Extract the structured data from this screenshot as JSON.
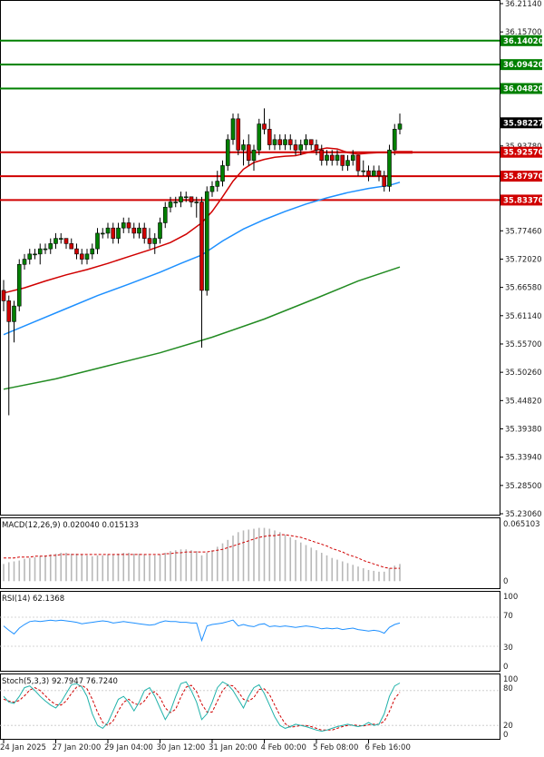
{
  "chart_data": {
    "type": "candlestick",
    "main_panel": {
      "price_axis_labels": [
        "36.21140",
        "36.15700",
        "36.09420",
        "36.04820",
        "35.98220",
        "35.93780",
        "35.88340",
        "35.82900",
        "35.77460",
        "35.72020",
        "35.66580",
        "35.61140",
        "35.55700",
        "35.50260",
        "35.44820",
        "35.39380",
        "35.33940",
        "35.28500",
        "35.23060"
      ],
      "ylim": [
        35.2306,
        36.2114
      ],
      "horizontal_lines": [
        {
          "value": 36.1402,
          "label": "36.14020",
          "color": "#008000"
        },
        {
          "value": 36.0942,
          "label": "36.09420",
          "color": "#008000"
        },
        {
          "value": 36.0482,
          "label": "36.04820",
          "color": "#008000"
        },
        {
          "value": 35.9257,
          "label": "35.92570",
          "color": "#d00000"
        },
        {
          "value": 35.8797,
          "label": "35.87970",
          "color": "#d00000"
        },
        {
          "value": 35.8337,
          "label": "35.83370",
          "color": "#d00000"
        }
      ],
      "current_price": {
        "value": 35.98227,
        "label": "35.98227",
        "color": "#000000"
      },
      "ma_price_tag": {
        "value": 35.9257,
        "color": "#d00000"
      },
      "time_labels": [
        "24 Jan 2025",
        "27 Jan 20:00",
        "29 Jan 04:00",
        "30 Jan 12:00",
        "31 Jan 20:00",
        "4 Feb 00:00",
        "5 Feb 08:00",
        "6 Feb 16:00"
      ],
      "time_label_index": [
        0,
        10,
        20,
        30,
        40,
        50,
        60,
        70
      ],
      "candles": [
        [
          35.66,
          35.68,
          35.62,
          35.64
        ],
        [
          35.64,
          35.65,
          35.42,
          35.6
        ],
        [
          35.6,
          35.64,
          35.56,
          35.63
        ],
        [
          35.63,
          35.72,
          35.62,
          35.71
        ],
        [
          35.71,
          35.73,
          35.7,
          35.72
        ],
        [
          35.72,
          35.74,
          35.71,
          35.73
        ],
        [
          35.73,
          35.74,
          35.72,
          35.73
        ],
        [
          35.73,
          35.75,
          35.71,
          35.74
        ],
        [
          35.74,
          35.75,
          35.73,
          35.74
        ],
        [
          35.74,
          35.76,
          35.73,
          35.75
        ],
        [
          35.75,
          35.77,
          35.74,
          35.76
        ],
        [
          35.76,
          35.77,
          35.75,
          35.76
        ],
        [
          35.76,
          35.76,
          35.74,
          35.75
        ],
        [
          35.75,
          35.76,
          35.74,
          35.74
        ],
        [
          35.74,
          35.75,
          35.72,
          35.73
        ],
        [
          35.73,
          35.74,
          35.71,
          35.72
        ],
        [
          35.72,
          35.74,
          35.71,
          35.73
        ],
        [
          35.73,
          35.75,
          35.72,
          35.74
        ],
        [
          35.74,
          35.78,
          35.73,
          35.77
        ],
        [
          35.77,
          35.78,
          35.76,
          35.77
        ],
        [
          35.77,
          35.79,
          35.76,
          35.78
        ],
        [
          35.78,
          35.79,
          35.75,
          35.76
        ],
        [
          35.76,
          35.79,
          35.75,
          35.78
        ],
        [
          35.78,
          35.8,
          35.77,
          35.79
        ],
        [
          35.79,
          35.8,
          35.77,
          35.78
        ],
        [
          35.78,
          35.79,
          35.76,
          35.77
        ],
        [
          35.77,
          35.79,
          35.76,
          35.78
        ],
        [
          35.78,
          35.79,
          35.75,
          35.76
        ],
        [
          35.76,
          35.78,
          35.74,
          35.75
        ],
        [
          35.75,
          35.77,
          35.73,
          35.76
        ],
        [
          35.76,
          35.8,
          35.75,
          35.79
        ],
        [
          35.79,
          35.83,
          35.78,
          35.82
        ],
        [
          35.82,
          35.84,
          35.81,
          35.83
        ],
        [
          35.83,
          35.84,
          35.82,
          35.83
        ],
        [
          35.83,
          35.85,
          35.82,
          35.84
        ],
        [
          35.84,
          35.85,
          35.83,
          35.84
        ],
        [
          35.84,
          35.84,
          35.82,
          35.83
        ],
        [
          35.83,
          35.84,
          35.8,
          35.83
        ],
        [
          35.83,
          35.84,
          35.55,
          35.66
        ],
        [
          35.66,
          35.86,
          35.65,
          35.85
        ],
        [
          35.85,
          35.87,
          35.84,
          35.86
        ],
        [
          35.86,
          35.89,
          35.85,
          35.87
        ],
        [
          35.87,
          35.91,
          35.86,
          35.9
        ],
        [
          35.9,
          35.96,
          35.89,
          35.95
        ],
        [
          35.95,
          36.0,
          35.94,
          35.99
        ],
        [
          35.99,
          36.0,
          35.92,
          35.93
        ],
        [
          35.93,
          35.95,
          35.9,
          35.94
        ],
        [
          35.94,
          35.96,
          35.9,
          35.91
        ],
        [
          35.91,
          35.94,
          35.89,
          35.93
        ],
        [
          35.93,
          35.99,
          35.92,
          35.98
        ],
        [
          35.98,
          36.01,
          35.96,
          35.97
        ],
        [
          35.97,
          35.99,
          35.93,
          35.94
        ],
        [
          35.94,
          35.96,
          35.93,
          35.95
        ],
        [
          35.95,
          35.96,
          35.93,
          35.94
        ],
        [
          35.94,
          35.96,
          35.93,
          35.95
        ],
        [
          35.95,
          35.96,
          35.93,
          35.94
        ],
        [
          35.94,
          35.95,
          35.92,
          35.93
        ],
        [
          35.93,
          35.95,
          35.92,
          35.94
        ],
        [
          35.94,
          35.96,
          35.93,
          35.95
        ],
        [
          35.95,
          35.95,
          35.93,
          35.94
        ],
        [
          35.94,
          35.95,
          35.92,
          35.93
        ],
        [
          35.93,
          35.94,
          35.9,
          35.91
        ],
        [
          35.91,
          35.93,
          35.9,
          35.92
        ],
        [
          35.92,
          35.93,
          35.9,
          35.91
        ],
        [
          35.91,
          35.93,
          35.9,
          35.92
        ],
        [
          35.92,
          35.92,
          35.89,
          35.9
        ],
        [
          35.9,
          35.92,
          35.89,
          35.91
        ],
        [
          35.91,
          35.93,
          35.9,
          35.92
        ],
        [
          35.92,
          35.92,
          35.88,
          35.89
        ],
        [
          35.89,
          35.91,
          35.88,
          35.89
        ],
        [
          35.89,
          35.9,
          35.87,
          35.88
        ],
        [
          35.88,
          35.9,
          35.88,
          35.89
        ],
        [
          35.89,
          35.9,
          35.87,
          35.88
        ],
        [
          35.88,
          35.89,
          35.85,
          35.86
        ],
        [
          35.86,
          35.94,
          35.85,
          35.93
        ],
        [
          35.93,
          35.98,
          35.92,
          35.97
        ],
        [
          35.97,
          36.0,
          35.96,
          35.98
        ]
      ],
      "moving_averages": [
        {
          "color": "#d00000",
          "width": 1.5,
          "points": [
            [
              0,
              35.655
            ],
            [
              4,
              35.665
            ],
            [
              8,
              35.678
            ],
            [
              12,
              35.69
            ],
            [
              16,
              35.7
            ],
            [
              20,
              35.712
            ],
            [
              24,
              35.725
            ],
            [
              28,
              35.738
            ],
            [
              32,
              35.752
            ],
            [
              35,
              35.768
            ],
            [
              38,
              35.79
            ],
            [
              40,
              35.812
            ],
            [
              42,
              35.84
            ],
            [
              44,
              35.87
            ],
            [
              46,
              35.893
            ],
            [
              48,
              35.906
            ],
            [
              50,
              35.912
            ],
            [
              52,
              35.916
            ],
            [
              54,
              35.918
            ],
            [
              56,
              35.919
            ],
            [
              58,
              35.924
            ],
            [
              60,
              35.93
            ],
            [
              62,
              35.934
            ],
            [
              64,
              35.932
            ],
            [
              66,
              35.925
            ],
            [
              68,
              35.922
            ],
            [
              70,
              35.924
            ],
            [
              72,
              35.925
            ],
            [
              74,
              35.925
            ],
            [
              76,
              35.925
            ]
          ]
        },
        {
          "color": "#1e90ff",
          "width": 1.5,
          "points": [
            [
              0,
              35.575
            ],
            [
              6,
              35.6
            ],
            [
              12,
              35.625
            ],
            [
              18,
              35.65
            ],
            [
              24,
              35.672
            ],
            [
              30,
              35.695
            ],
            [
              34,
              35.712
            ],
            [
              38,
              35.728
            ],
            [
              42,
              35.755
            ],
            [
              46,
              35.778
            ],
            [
              50,
              35.796
            ],
            [
              54,
              35.812
            ],
            [
              58,
              35.826
            ],
            [
              62,
              35.838
            ],
            [
              66,
              35.848
            ],
            [
              70,
              35.856
            ],
            [
              74,
              35.862
            ],
            [
              76,
              35.868
            ]
          ]
        },
        {
          "color": "#228b22",
          "width": 1.5,
          "points": [
            [
              0,
              35.47
            ],
            [
              10,
              35.49
            ],
            [
              20,
              35.515
            ],
            [
              30,
              35.54
            ],
            [
              40,
              35.57
            ],
            [
              50,
              35.605
            ],
            [
              60,
              35.645
            ],
            [
              68,
              35.678
            ],
            [
              76,
              35.705
            ]
          ]
        }
      ]
    },
    "macd_panel": {
      "label": "MACD(12,26,9) 0.020040 0.015133",
      "axis_labels": [
        "0.065103",
        "0"
      ],
      "ylim": [
        -0.005,
        0.07
      ],
      "histogram": [
        0.02,
        0.022,
        0.023,
        0.024,
        0.026,
        0.027,
        0.028,
        0.029,
        0.03,
        0.031,
        0.032,
        0.033,
        0.033,
        0.032,
        0.032,
        0.031,
        0.03,
        0.029,
        0.03,
        0.03,
        0.031,
        0.031,
        0.032,
        0.033,
        0.033,
        0.032,
        0.032,
        0.031,
        0.03,
        0.03,
        0.031,
        0.033,
        0.035,
        0.036,
        0.037,
        0.037,
        0.036,
        0.035,
        0.03,
        0.033,
        0.036,
        0.04,
        0.044,
        0.048,
        0.053,
        0.057,
        0.059,
        0.06,
        0.061,
        0.062,
        0.062,
        0.061,
        0.059,
        0.057,
        0.054,
        0.051,
        0.048,
        0.045,
        0.042,
        0.039,
        0.036,
        0.033,
        0.03,
        0.027,
        0.025,
        0.023,
        0.021,
        0.019,
        0.017,
        0.015,
        0.013,
        0.012,
        0.011,
        0.011,
        0.015,
        0.018,
        0.02
      ],
      "signal": [
        0.027,
        0.027,
        0.027,
        0.028,
        0.028,
        0.028,
        0.029,
        0.029,
        0.029,
        0.03,
        0.03,
        0.031,
        0.031,
        0.031,
        0.031,
        0.031,
        0.031,
        0.031,
        0.031,
        0.031,
        0.031,
        0.031,
        0.031,
        0.031,
        0.031,
        0.031,
        0.031,
        0.031,
        0.031,
        0.031,
        0.031,
        0.032,
        0.032,
        0.033,
        0.033,
        0.034,
        0.034,
        0.034,
        0.034,
        0.034,
        0.035,
        0.036,
        0.037,
        0.039,
        0.041,
        0.043,
        0.045,
        0.047,
        0.049,
        0.051,
        0.052,
        0.053,
        0.053,
        0.054,
        0.054,
        0.053,
        0.052,
        0.051,
        0.049,
        0.047,
        0.045,
        0.043,
        0.041,
        0.038,
        0.036,
        0.034,
        0.031,
        0.029,
        0.027,
        0.024,
        0.022,
        0.02,
        0.018,
        0.016,
        0.015,
        0.015,
        0.015
      ]
    },
    "rsi_panel": {
      "label": "RSI(14) 62.1368",
      "axis_labels": [
        "100",
        "70",
        "30",
        "0"
      ],
      "ylim": [
        0,
        100
      ],
      "levels": [
        70,
        30
      ],
      "values": [
        58,
        52,
        47,
        55,
        60,
        64,
        65,
        64,
        65,
        66,
        65,
        66,
        65,
        64,
        63,
        61,
        62,
        63,
        64,
        65,
        64,
        62,
        63,
        64,
        63,
        62,
        61,
        60,
        59,
        60,
        63,
        65,
        64,
        64,
        63,
        63,
        62,
        62,
        38,
        58,
        60,
        61,
        62,
        64,
        66,
        58,
        60,
        58,
        57,
        60,
        61,
        57,
        58,
        57,
        58,
        57,
        56,
        57,
        58,
        57,
        56,
        54,
        55,
        54,
        55,
        53,
        54,
        55,
        53,
        52,
        51,
        52,
        51,
        48,
        56,
        60,
        62
      ]
    },
    "stoch_panel": {
      "label": "Stoch(5,3,3) 92.7947 76.7240",
      "axis_labels": [
        "100",
        "80",
        "20",
        "0"
      ],
      "ylim": [
        0,
        100
      ],
      "levels": [
        80,
        20
      ],
      "k": [
        70,
        60,
        58,
        70,
        85,
        88,
        80,
        70,
        62,
        55,
        50,
        60,
        75,
        90,
        92,
        86,
        70,
        40,
        20,
        15,
        25,
        45,
        65,
        70,
        60,
        45,
        60,
        80,
        85,
        70,
        50,
        30,
        45,
        70,
        92,
        95,
        80,
        60,
        30,
        40,
        60,
        85,
        95,
        90,
        80,
        65,
        50,
        70,
        85,
        90,
        75,
        55,
        35,
        20,
        15,
        18,
        22,
        20,
        18,
        15,
        12,
        10,
        12,
        15,
        18,
        20,
        22,
        20,
        18,
        20,
        25,
        20,
        22,
        40,
        70,
        88,
        93
      ],
      "d": [
        65,
        62,
        60,
        63,
        71,
        81,
        85,
        80,
        71,
        62,
        56,
        55,
        62,
        75,
        86,
        89,
        83,
        65,
        43,
        25,
        20,
        28,
        45,
        60,
        65,
        58,
        55,
        62,
        75,
        78,
        68,
        50,
        42,
        48,
        69,
        86,
        89,
        78,
        57,
        43,
        43,
        62,
        80,
        90,
        88,
        78,
        65,
        62,
        68,
        82,
        83,
        73,
        55,
        37,
        23,
        17,
        18,
        20,
        20,
        18,
        15,
        12,
        12,
        12,
        15,
        18,
        20,
        21,
        20,
        19,
        21,
        22,
        22,
        27,
        44,
        66,
        77
      ]
    }
  }
}
